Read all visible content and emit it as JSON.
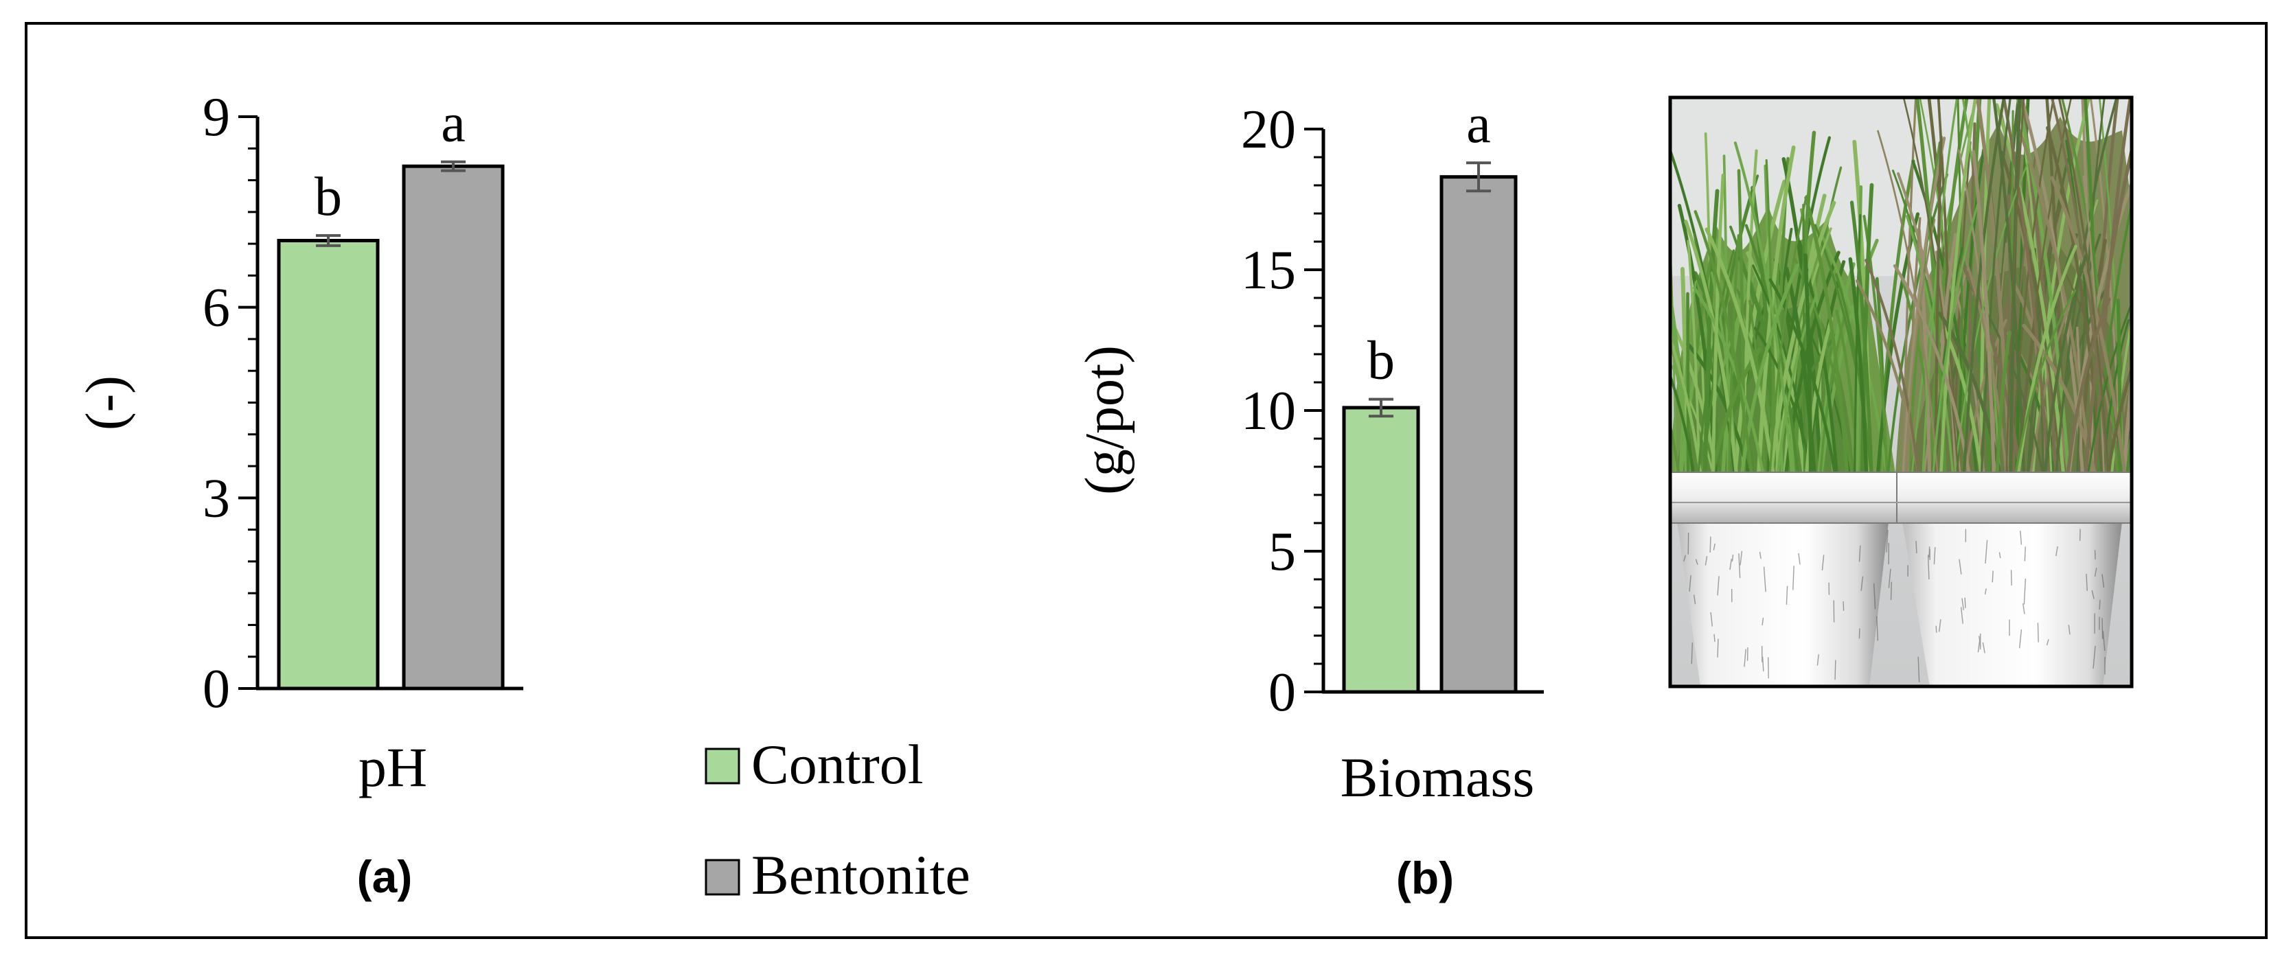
{
  "figure": {
    "legend": {
      "items": [
        {
          "label": "Control",
          "color": "#a8d99a"
        },
        {
          "label": "Bentonite",
          "color": "#a6a6a6"
        }
      ]
    },
    "photo": {
      "icon": "grass-pots-photo"
    }
  },
  "chart_data": [
    {
      "type": "bar",
      "panel_label": "(a)",
      "xlabel": "pH",
      "ylabel": "(-)",
      "ylim": [
        0,
        9
      ],
      "yticks": [
        0,
        3,
        6,
        9
      ],
      "minor_tick_step": 0.5,
      "categories": [
        "Control",
        "Bentonite"
      ],
      "values": [
        7.05,
        8.22
      ],
      "errors": [
        0.08,
        0.07
      ],
      "annotations": [
        "b",
        "a"
      ],
      "colors": [
        "#a8d99a",
        "#a6a6a6"
      ],
      "grid": false
    },
    {
      "type": "bar",
      "panel_label": "(b)",
      "xlabel": "Biomass",
      "ylabel": "(g/pot)",
      "ylim": [
        0,
        20
      ],
      "yticks": [
        0,
        5,
        10,
        15,
        20
      ],
      "minor_tick_step": 1,
      "categories": [
        "Control",
        "Bentonite"
      ],
      "values": [
        10.1,
        18.3
      ],
      "errors": [
        0.3,
        0.5
      ],
      "annotations": [
        "b",
        "a"
      ],
      "colors": [
        "#a8d99a",
        "#a6a6a6"
      ],
      "grid": false
    }
  ]
}
